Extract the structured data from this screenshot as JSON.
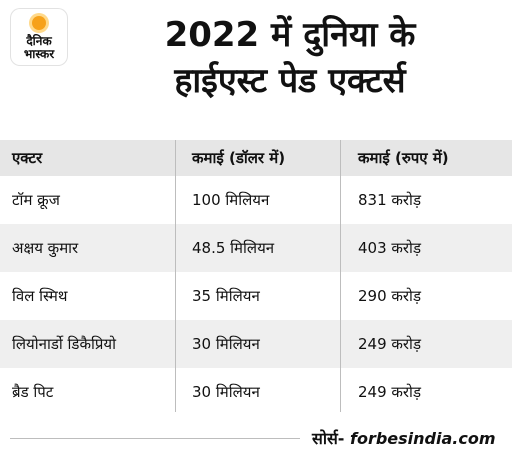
{
  "brand": {
    "line1": "दैनिक",
    "line2": "भास्कर"
  },
  "title": {
    "line1": "2022 में दुनिया के",
    "line2": "हाईएस्ट पेड एक्टर्स"
  },
  "table": {
    "headers": [
      "एक्टर",
      "कमाई (डॉलर में)",
      "कमाई (रुपए में)"
    ],
    "rows": [
      [
        "टॉम क्रूज",
        "100 मिलियन",
        "831 करोड़"
      ],
      [
        "अक्षय कुमार",
        "48.5 मिलियन",
        "403 करोड़"
      ],
      [
        "विल स्मिथ",
        "35 मिलियन",
        "290 करोड़"
      ],
      [
        "लियोनार्डो डिकैप्रियो",
        "30 मिलियन",
        "249 करोड़"
      ],
      [
        "ब्रैड पिट",
        "30 मिलियन",
        "249 करोड़"
      ]
    ]
  },
  "source": {
    "label": "सोर्स-",
    "site": "forbesindia.com"
  }
}
